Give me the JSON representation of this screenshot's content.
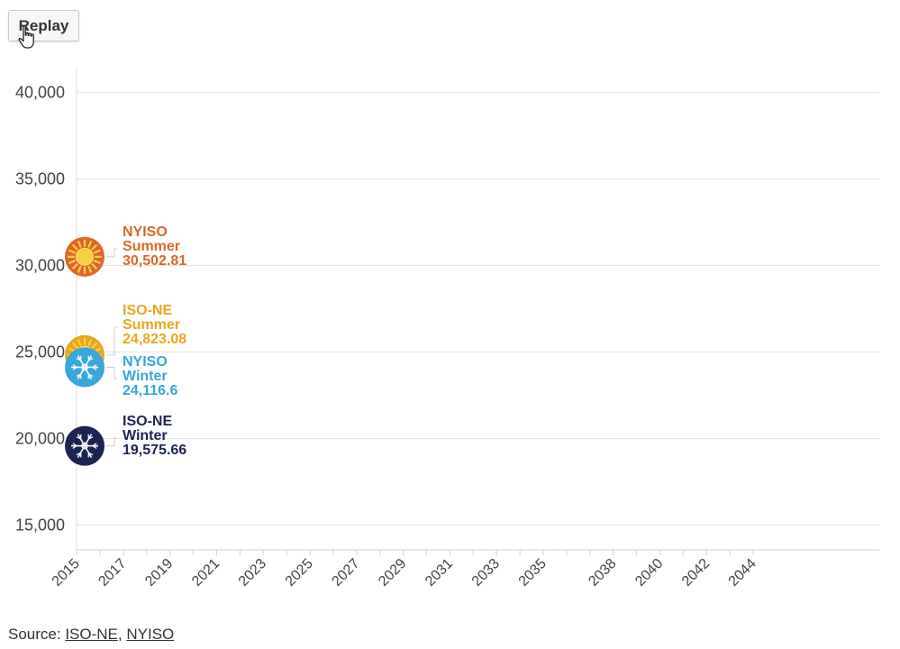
{
  "controls": {
    "replay_label": "Replay"
  },
  "source": {
    "prefix": "Source:",
    "separator": ",",
    "links": [
      "ISO-NE",
      "NYISO"
    ]
  },
  "chart_data": {
    "type": "line",
    "ylim": [
      13500,
      41500
    ],
    "yticks": [
      15000,
      20000,
      25000,
      30000,
      35000,
      40000
    ],
    "ytick_labels": [
      "15,000",
      "20,000",
      "25,000",
      "30,000",
      "35,000",
      "40,000"
    ],
    "xlim": [
      2015,
      2050
    ],
    "xticks": [
      2015,
      2017,
      2019,
      2021,
      2023,
      2025,
      2027,
      2029,
      2031,
      2033,
      2035,
      2038,
      2040,
      2042,
      2044
    ],
    "xtick_labels": [
      "2015",
      "2017",
      "2019",
      "2021",
      "2023",
      "2025",
      "2027",
      "2029",
      "2031",
      "2033",
      "2035",
      "2038",
      "2040",
      "2042",
      "2044"
    ],
    "grid": true,
    "series": [
      {
        "name": "NYISO Summer",
        "label_lines": [
          "NYISO",
          "Summer",
          "30,502.81"
        ],
        "x": [
          2015
        ],
        "values": [
          30502.81
        ],
        "color": "#e0662a",
        "icon": "sun-icon"
      },
      {
        "name": "ISO-NE Summer",
        "label_lines": [
          "ISO-NE",
          "Summer",
          "24,823.08"
        ],
        "x": [
          2015
        ],
        "values": [
          24823.08
        ],
        "color": "#e8a620",
        "icon": "sun-icon"
      },
      {
        "name": "NYISO Winter",
        "label_lines": [
          "NYISO",
          "Winter",
          "24,116.6"
        ],
        "x": [
          2015
        ],
        "values": [
          24116.6
        ],
        "color": "#3aa6dc",
        "icon": "snowflake-icon"
      },
      {
        "name": "ISO-NE Winter",
        "label_lines": [
          "ISO-NE",
          "Winter",
          "19,575.66"
        ],
        "x": [
          2015
        ],
        "values": [
          19575.66
        ],
        "color": "#1c2453",
        "icon": "snowflake-icon"
      }
    ]
  }
}
